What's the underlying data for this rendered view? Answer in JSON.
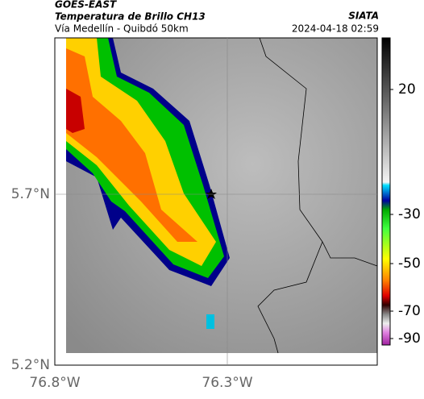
{
  "header": {
    "satellite": "GOES-EAST",
    "product": "Temperatura de Brillo CH13",
    "route": "Vía Medellín - Quibdó 50km",
    "source": "SIATA",
    "timestamp": "2024-04-18 02:59"
  },
  "map": {
    "lat_ticks": [
      {
        "value": 5.7,
        "label": "5.7°N"
      },
      {
        "value": 5.2,
        "label": "5.2°N"
      }
    ],
    "lon_ticks": [
      {
        "value": -76.8,
        "label": "76.8°W"
      },
      {
        "value": -76.3,
        "label": "76.3°W"
      }
    ]
  },
  "colorbar": {
    "ticks": [
      20,
      -30,
      -50,
      -70,
      -90
    ]
  }
}
